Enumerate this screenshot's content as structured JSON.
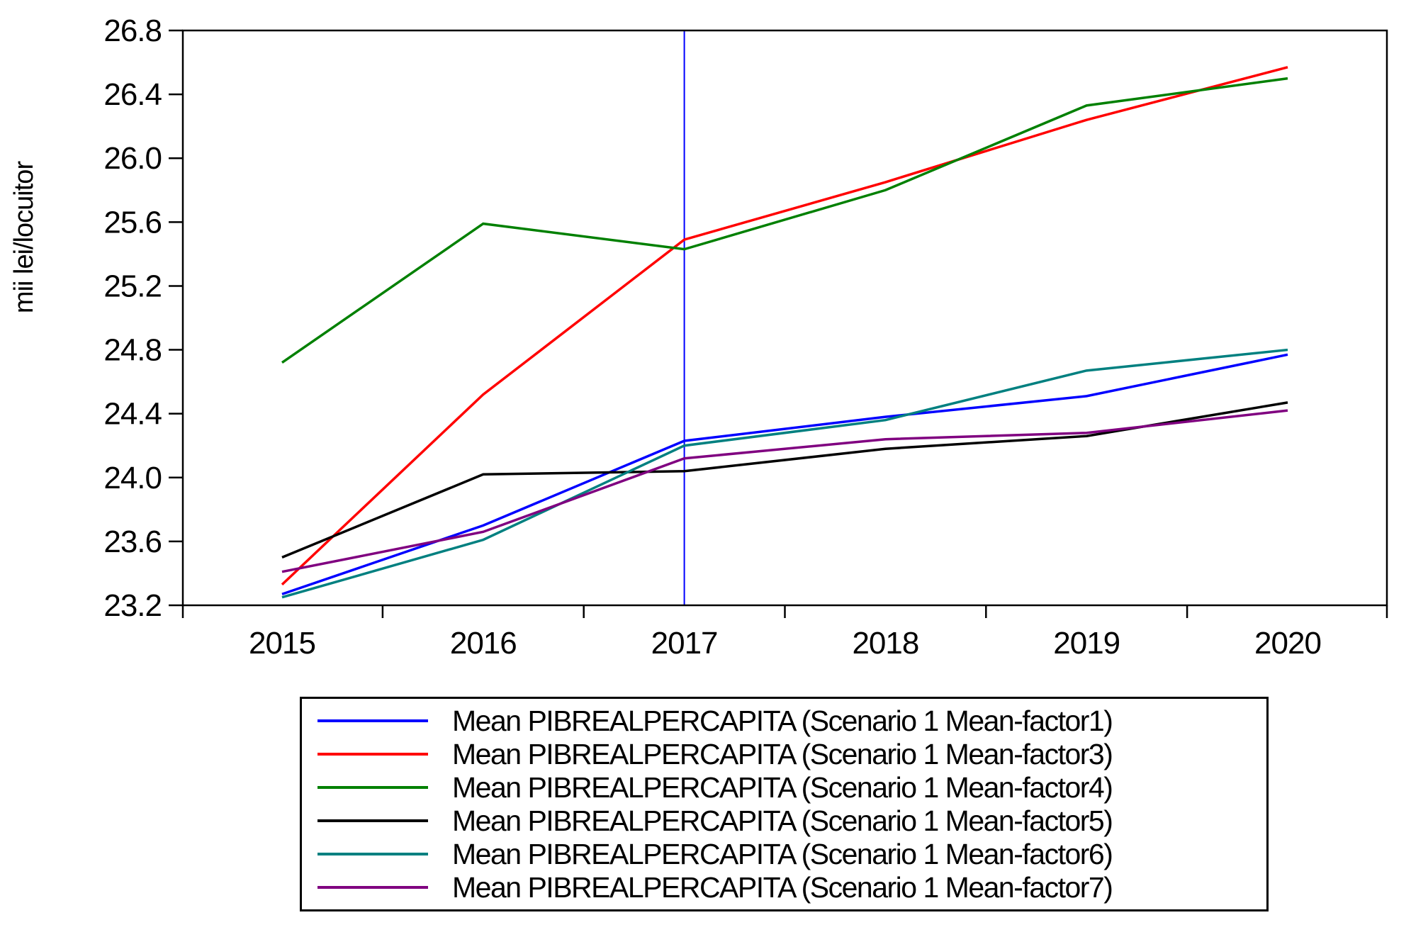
{
  "chart_data": {
    "type": "line",
    "title": "",
    "xlabel": "",
    "ylabel": "mii lei/locuitor",
    "categories": [
      "2015",
      "2016",
      "2017",
      "2018",
      "2019",
      "2020"
    ],
    "series": [
      {
        "name": "Mean PIBREALPERCAPITA (Scenario 1 Mean-factor1)",
        "color": "#0000ff",
        "values": [
          23.27,
          23.7,
          24.23,
          24.38,
          24.51,
          24.77
        ]
      },
      {
        "name": "Mean PIBREALPERCAPITA (Scenario 1 Mean-factor3)",
        "color": "#ff0000",
        "values": [
          23.33,
          24.52,
          25.49,
          25.85,
          26.24,
          26.57
        ]
      },
      {
        "name": "Mean PIBREALPERCAPITA (Scenario 1 Mean-factor4)",
        "color": "#008000",
        "values": [
          24.72,
          25.59,
          25.43,
          25.8,
          26.33,
          26.5
        ]
      },
      {
        "name": "Mean PIBREALPERCAPITA (Scenario 1 Mean-factor5)",
        "color": "#000000",
        "values": [
          23.5,
          24.02,
          24.04,
          24.18,
          24.26,
          24.47
        ]
      },
      {
        "name": "Mean PIBREALPERCAPITA (Scenario 1 Mean-factor6)",
        "color": "#008080",
        "values": [
          23.25,
          23.61,
          24.2,
          24.36,
          24.67,
          24.8
        ]
      },
      {
        "name": "Mean PIBREALPERCAPITA (Scenario 1 Mean-factor7)",
        "color": "#800080",
        "values": [
          23.41,
          23.66,
          24.12,
          24.24,
          24.28,
          24.42
        ]
      }
    ],
    "ylim": [
      23.2,
      26.8
    ],
    "ytick_step": 0.4,
    "y_tick_labels": [
      "26.8",
      "26.4",
      "26.0",
      "25.6",
      "25.2",
      "24.8",
      "24.4",
      "24.0",
      "23.6",
      "23.2"
    ],
    "grid": false,
    "legend_position": "bottom",
    "axis_color": "#000000",
    "vline": {
      "x": "2017",
      "color": "#0000ff"
    }
  }
}
